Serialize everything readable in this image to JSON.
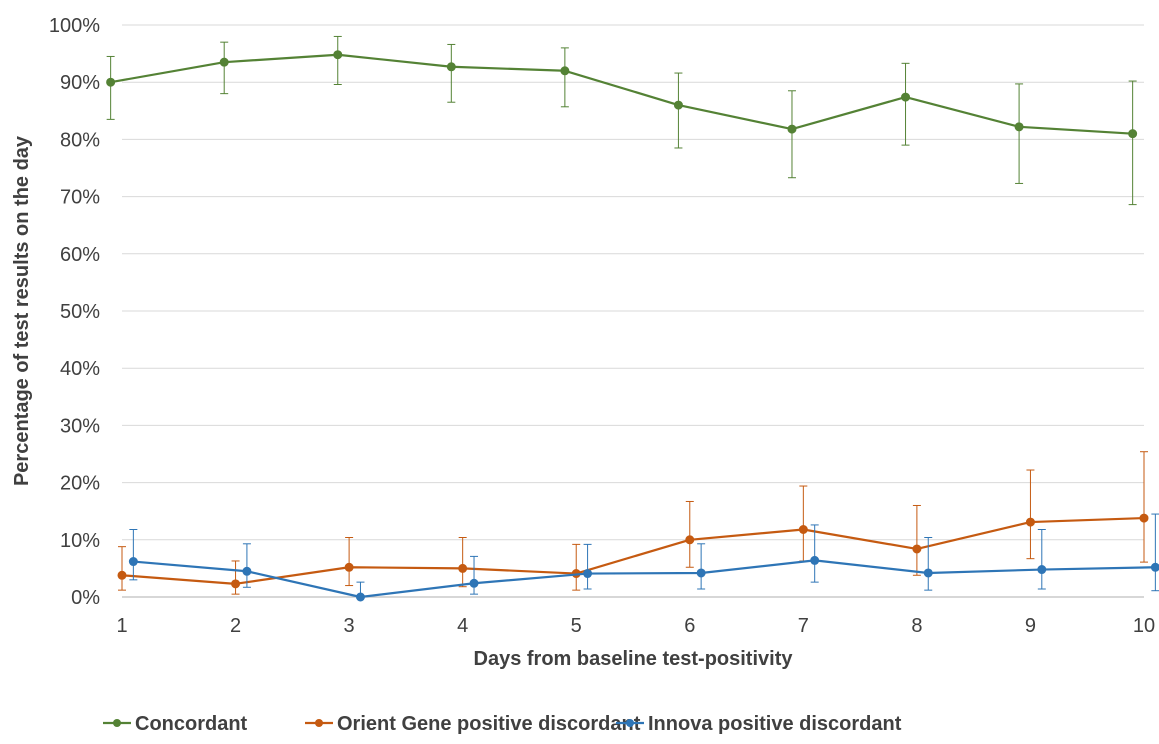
{
  "chart_data": {
    "type": "line",
    "title": "",
    "xlabel": "Days from baseline test-positivity",
    "ylabel": "Percentage of test results on the day",
    "ylim": [
      0,
      100
    ],
    "x": [
      1,
      2,
      3,
      4,
      5,
      6,
      7,
      8,
      9,
      10
    ],
    "x_tick_labels": [
      "1",
      "2",
      "3",
      "4",
      "5",
      "6",
      "7",
      "8",
      "9",
      "10"
    ],
    "y_ticks": [
      0,
      10,
      20,
      30,
      40,
      50,
      60,
      70,
      80,
      90,
      100
    ],
    "y_tick_labels": [
      "0%",
      "10%",
      "20%",
      "30%",
      "40%",
      "50%",
      "60%",
      "70%",
      "80%",
      "90%",
      "100%"
    ],
    "grid": "horizontal",
    "legend_position": "bottom",
    "error_bars": true,
    "series": [
      {
        "name": "Concordant",
        "color": "#548235",
        "x_offset": -0.1,
        "values": [
          90.0,
          93.5,
          94.8,
          92.7,
          92.0,
          86.0,
          81.8,
          87.4,
          82.2,
          81.0
        ],
        "lower": [
          83.5,
          88.0,
          89.6,
          86.5,
          85.7,
          78.5,
          73.3,
          79.0,
          72.3,
          68.6
        ],
        "upper": [
          94.5,
          97.0,
          98.0,
          96.6,
          96.0,
          91.6,
          88.5,
          93.3,
          89.7,
          90.2
        ]
      },
      {
        "name": "Orient Gene positive discordant",
        "color": "#C55A11",
        "x_offset": 0,
        "values": [
          3.8,
          2.3,
          5.2,
          5.0,
          4.1,
          10.0,
          11.8,
          8.4,
          13.1,
          13.8
        ],
        "lower": [
          1.2,
          0.5,
          2.0,
          1.8,
          1.2,
          5.2,
          6.3,
          3.8,
          6.7,
          6.1
        ],
        "upper": [
          8.8,
          6.3,
          10.4,
          10.4,
          9.2,
          16.7,
          19.4,
          16.0,
          22.2,
          25.4
        ]
      },
      {
        "name": "Innova positive discordant",
        "color": "#2E75B6",
        "x_offset": 0.1,
        "values": [
          6.2,
          4.5,
          0.0,
          2.4,
          4.1,
          4.2,
          6.4,
          4.2,
          4.8,
          5.2
        ],
        "lower": [
          3.0,
          1.7,
          0.0,
          0.5,
          1.4,
          1.4,
          2.6,
          1.2,
          1.4,
          1.1
        ],
        "upper": [
          11.8,
          9.3,
          2.6,
          7.1,
          9.2,
          9.3,
          12.6,
          10.4,
          11.8,
          14.5
        ]
      }
    ]
  }
}
